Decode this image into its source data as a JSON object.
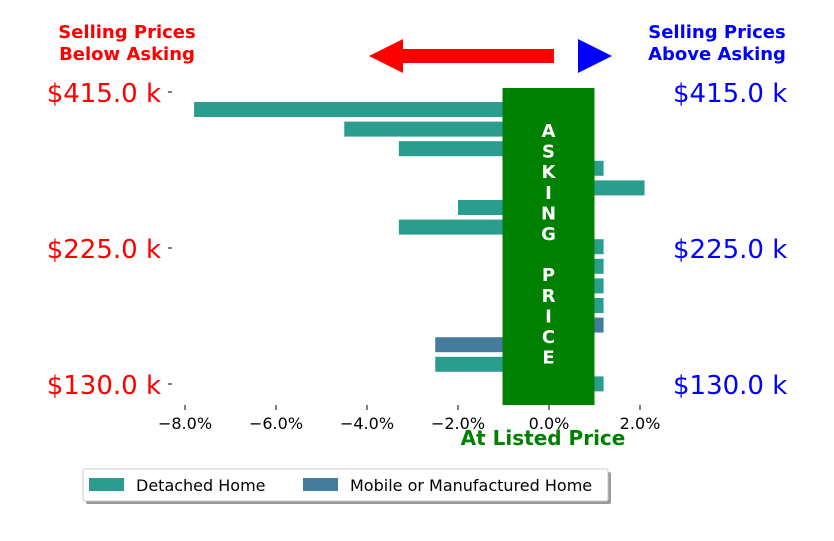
{
  "header": {
    "left_line1": "Selling Prices",
    "left_line2": "Below Asking",
    "right_line1": "Selling Prices",
    "right_line2": "Above Asking"
  },
  "colors": {
    "detached": "#2a9d8f",
    "mobile": "#457b9d",
    "asking_band": "#008000",
    "left_accent": "#ff0000",
    "right_accent": "#0000ff"
  },
  "arrows": {
    "left": "left-arrow-icon",
    "right": "right-triangle-icon"
  },
  "chart_data": {
    "type": "bar",
    "orientation": "horizontal",
    "xlabel": "At Listed Price",
    "xlim": [
      -0.085,
      0.025
    ],
    "xticks": [
      -0.08,
      -0.06,
      -0.04,
      -0.02,
      0.0,
      0.02
    ],
    "xtick_labels": [
      "−8.0%",
      "−6.0%",
      "−4.0%",
      "−2.0%",
      "0.0%",
      "2.0%"
    ],
    "price_labels": [
      "$415.0 k",
      "$225.0 k",
      "$130.0 k"
    ],
    "band_text": [
      "A",
      "S",
      "K",
      "I",
      "N",
      "G",
      "",
      "P",
      "R",
      "I",
      "C",
      "E"
    ],
    "band_range": [
      -0.01,
      0.01
    ],
    "series": [
      {
        "name": "Detached Home",
        "color": "#2a9d8f"
      },
      {
        "name": "Mobile or Manufactured Home",
        "color": "#457b9d"
      }
    ],
    "bars": [
      {
        "value": -0.078,
        "series": 0
      },
      {
        "value": -0.045,
        "series": 0
      },
      {
        "value": -0.033,
        "series": 0
      },
      {
        "value": 0.012,
        "series": 0
      },
      {
        "value": 0.021,
        "series": 0
      },
      {
        "value": -0.02,
        "series": 0
      },
      {
        "value": -0.033,
        "series": 0
      },
      {
        "value": 0.012,
        "series": 0
      },
      {
        "value": 0.012,
        "series": 0
      },
      {
        "value": 0.012,
        "series": 0
      },
      {
        "value": 0.012,
        "series": 0
      },
      {
        "value": 0.012,
        "series": 1
      },
      {
        "value": -0.025,
        "series": 1
      },
      {
        "value": -0.025,
        "series": 0
      },
      {
        "value": 0.012,
        "series": 0
      }
    ],
    "legend": {
      "location": "bottom-left",
      "entries": [
        "Detached Home",
        "Mobile or Manufactured Home"
      ]
    }
  }
}
